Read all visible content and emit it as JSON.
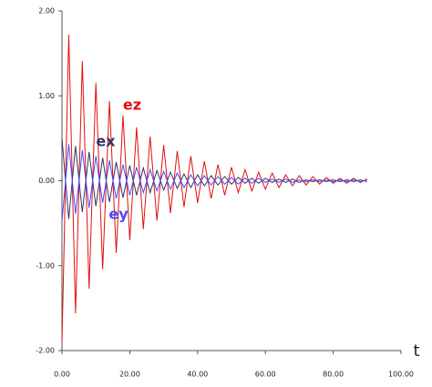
{
  "chart_data": {
    "type": "line",
    "xlabel": "t",
    "xlim": [
      0,
      100
    ],
    "ylim": [
      -2,
      2
    ],
    "xticks": [
      {
        "value": 0,
        "label": "0.00"
      },
      {
        "value": 20,
        "label": "20.00"
      },
      {
        "value": 40,
        "label": "40.00"
      },
      {
        "value": 60,
        "label": "60.00"
      },
      {
        "value": 80,
        "label": "80.00"
      },
      {
        "value": 100,
        "label": "100.00"
      }
    ],
    "yticks": [
      {
        "value": -2,
        "label": "-2.00"
      },
      {
        "value": -1,
        "label": "-1.00"
      },
      {
        "value": 0,
        "label": "0.00"
      },
      {
        "value": 1,
        "label": "1.00"
      },
      {
        "value": 2,
        "label": "2.00"
      }
    ],
    "x": [
      0,
      2,
      4,
      6,
      8,
      10,
      12,
      14,
      16,
      18,
      20,
      22,
      24,
      26,
      28,
      30,
      32,
      34,
      36,
      38,
      40,
      42,
      44,
      46,
      48,
      50,
      52,
      54,
      56,
      58,
      60,
      62,
      64,
      66,
      68,
      70,
      72,
      74,
      76,
      78,
      80,
      82,
      84,
      86,
      88,
      90
    ],
    "series": [
      {
        "name": "ez",
        "color": "#e01010",
        "values": [
          -1.9,
          1.72,
          -1.56,
          1.41,
          -1.27,
          1.15,
          -1.04,
          0.94,
          -0.85,
          0.77,
          -0.7,
          0.63,
          -0.57,
          0.52,
          -0.47,
          0.42,
          -0.38,
          0.35,
          -0.31,
          0.29,
          -0.26,
          0.23,
          -0.21,
          0.19,
          -0.17,
          0.16,
          -0.14,
          0.13,
          -0.12,
          0.1,
          -0.1,
          0.09,
          -0.08,
          0.07,
          -0.06,
          0.06,
          -0.05,
          0.05,
          -0.04,
          0.04,
          -0.03,
          0.03,
          -0.03,
          0.03,
          -0.02,
          0.02
        ]
      },
      {
        "name": "ex",
        "color": "#333366",
        "values": [
          0.5,
          -0.45,
          0.41,
          -0.37,
          0.34,
          -0.3,
          0.27,
          -0.25,
          0.22,
          -0.2,
          0.18,
          -0.17,
          0.15,
          -0.14,
          0.12,
          -0.11,
          0.1,
          -0.09,
          0.08,
          -0.08,
          0.07,
          -0.06,
          0.06,
          -0.05,
          0.05,
          -0.04,
          0.04,
          -0.03,
          0.03,
          -0.03,
          0.03,
          -0.02,
          0.02,
          -0.02,
          0.02,
          -0.02,
          0.01,
          -0.01,
          0.01,
          -0.01,
          0.01,
          -0.01,
          0.01,
          -0.01,
          0.01,
          -0.01
        ]
      },
      {
        "name": "ey",
        "color": "#4a4aff",
        "values": [
          -0.48,
          0.43,
          -0.39,
          0.36,
          -0.32,
          0.29,
          -0.26,
          0.24,
          -0.21,
          0.19,
          -0.17,
          0.16,
          -0.14,
          0.13,
          -0.12,
          0.11,
          -0.1,
          0.09,
          -0.08,
          0.07,
          -0.06,
          0.06,
          -0.05,
          0.05,
          -0.04,
          0.04,
          -0.04,
          0.03,
          -0.03,
          0.03,
          -0.02,
          0.02,
          -0.02,
          0.02,
          -0.02,
          0.01,
          -0.01,
          0.01,
          -0.01,
          0.01,
          -0.01,
          0.01,
          -0.01,
          0.01,
          -0.01,
          0.01
        ]
      }
    ]
  }
}
